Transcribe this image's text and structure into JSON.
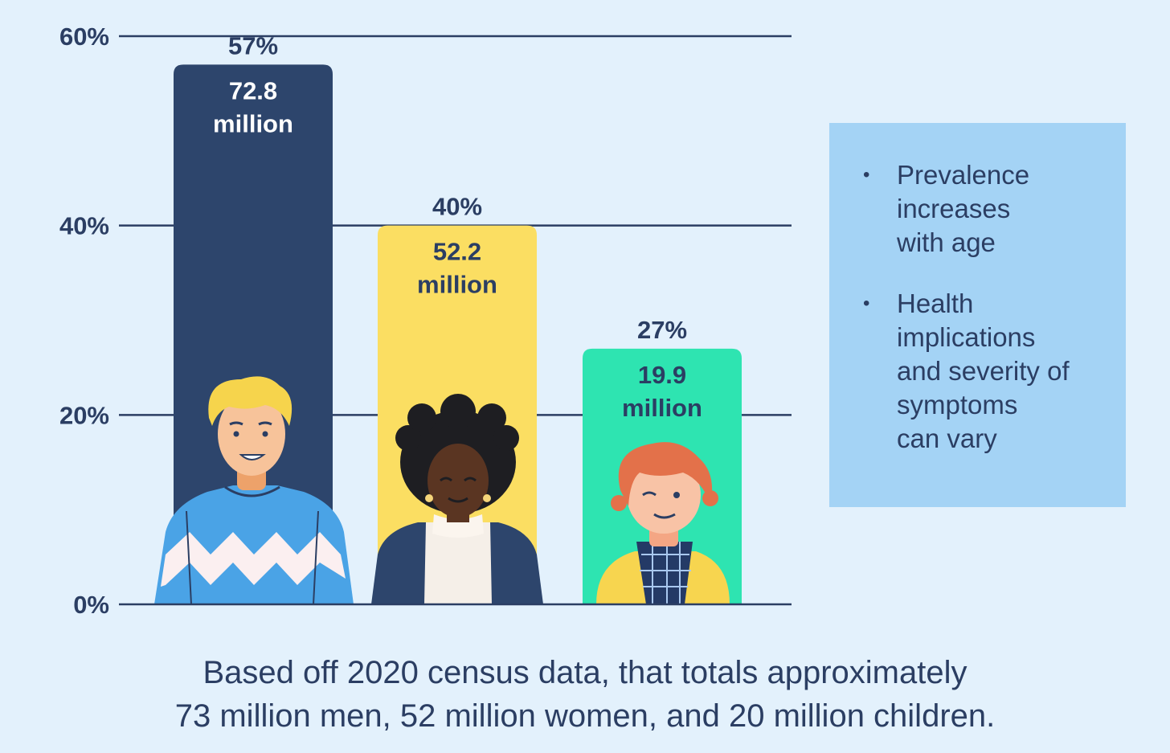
{
  "chart_data": {
    "type": "bar",
    "categories": [
      "men",
      "women",
      "children"
    ],
    "values": [
      57,
      40,
      27
    ],
    "value_labels": [
      "57%",
      "40%",
      "27%"
    ],
    "count_labels": [
      [
        "72.8",
        "million"
      ],
      [
        "52.2",
        "million"
      ],
      [
        "19.9",
        "million"
      ]
    ],
    "bar_colors": [
      "#2d456c",
      "#fbde62",
      "#2ee4b1"
    ],
    "count_colors": [
      "#ffffff",
      "#2b3e63",
      "#2b3e63"
    ],
    "ylim": [
      0,
      60
    ],
    "yticks": [
      0,
      20,
      40,
      60
    ],
    "ytick_labels": [
      "0%",
      "20%",
      "40%",
      "60%"
    ],
    "grid": true,
    "title": "",
    "xlabel": "",
    "ylabel": ""
  },
  "notes": {
    "items": [
      [
        "Prevalence",
        "increases",
        "with age"
      ],
      [
        "Health",
        "implications",
        "and severity of",
        "symptoms",
        "can vary"
      ]
    ],
    "bullet": "•"
  },
  "caption": {
    "line1": "Based off 2020 census data, that totals approximately",
    "line2": "73 million men, 52 million women, and 20 million children."
  },
  "colors": {
    "background": "#e3f1fc",
    "axis": "#2b3e63",
    "note_box": "#a4d3f5"
  },
  "icons": [
    "man-illustration",
    "woman-illustration",
    "child-illustration"
  ]
}
